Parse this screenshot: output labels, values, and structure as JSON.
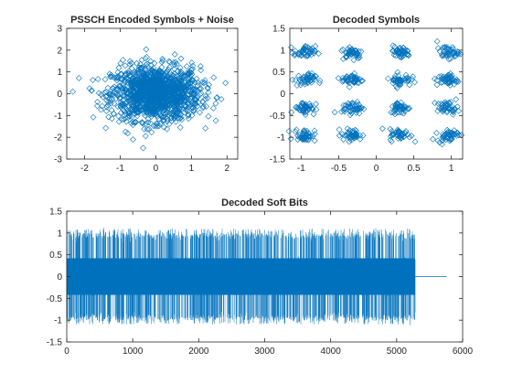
{
  "figure": {
    "background": "#ffffff",
    "axes_color": "#262626",
    "series_color": "#0072bd"
  },
  "chart_data": [
    {
      "id": "pssch-encoded",
      "type": "scatter",
      "title": "PSSCH Encoded Symbols + Noise",
      "xlabel": "",
      "ylabel": "",
      "xlim": [
        -2.5,
        2.3
      ],
      "ylim": [
        -3,
        3
      ],
      "xticks": [
        -2,
        -1,
        0,
        1,
        2
      ],
      "yticks": [
        -3,
        -2,
        -1,
        0,
        1,
        2,
        3
      ],
      "marker": "diamond",
      "grid": false,
      "distribution": {
        "kind": "complex-gaussian-cloud",
        "center": [
          0,
          0
        ],
        "std": [
          0.62,
          0.62
        ],
        "approx_points": 1400
      }
    },
    {
      "id": "decoded-symbols",
      "type": "scatter",
      "title": "Decoded Symbols",
      "xlabel": "",
      "ylabel": "",
      "xlim": [
        -1.15,
        1.15
      ],
      "ylim": [
        -1.5,
        1.5
      ],
      "xticks": [
        -1,
        -0.5,
        0,
        0.5,
        1
      ],
      "yticks": [
        -1.5,
        -1,
        -0.5,
        0,
        0.5,
        1,
        1.5
      ],
      "marker": "diamond",
      "grid": false,
      "constellation": {
        "kind": "16QAM",
        "levels_x": [
          -0.95,
          -0.32,
          0.32,
          0.95
        ],
        "levels_y": [
          -0.95,
          -0.32,
          0.32,
          0.95
        ],
        "cluster_std": 0.07,
        "approx_points_per_cluster": 45
      }
    },
    {
      "id": "decoded-soft-bits",
      "type": "line",
      "title": "Decoded Soft Bits",
      "xlabel": "",
      "ylabel": "",
      "xlim": [
        0,
        6000
      ],
      "ylim": [
        -1.5,
        1.5
      ],
      "xticks": [
        0,
        1000,
        2000,
        3000,
        4000,
        5000,
        6000
      ],
      "yticks": [
        -1.5,
        -1,
        -0.5,
        0,
        0.5,
        1,
        1.5
      ],
      "grid": false,
      "signal": {
        "active_range": [
          0,
          5280
        ],
        "flat_range": [
          5280,
          5760
        ],
        "flat_value": 0,
        "levels": [
          -0.95,
          -0.32,
          0.32,
          0.95
        ],
        "peak_extent": [
          -1.1,
          1.1
        ]
      }
    }
  ]
}
